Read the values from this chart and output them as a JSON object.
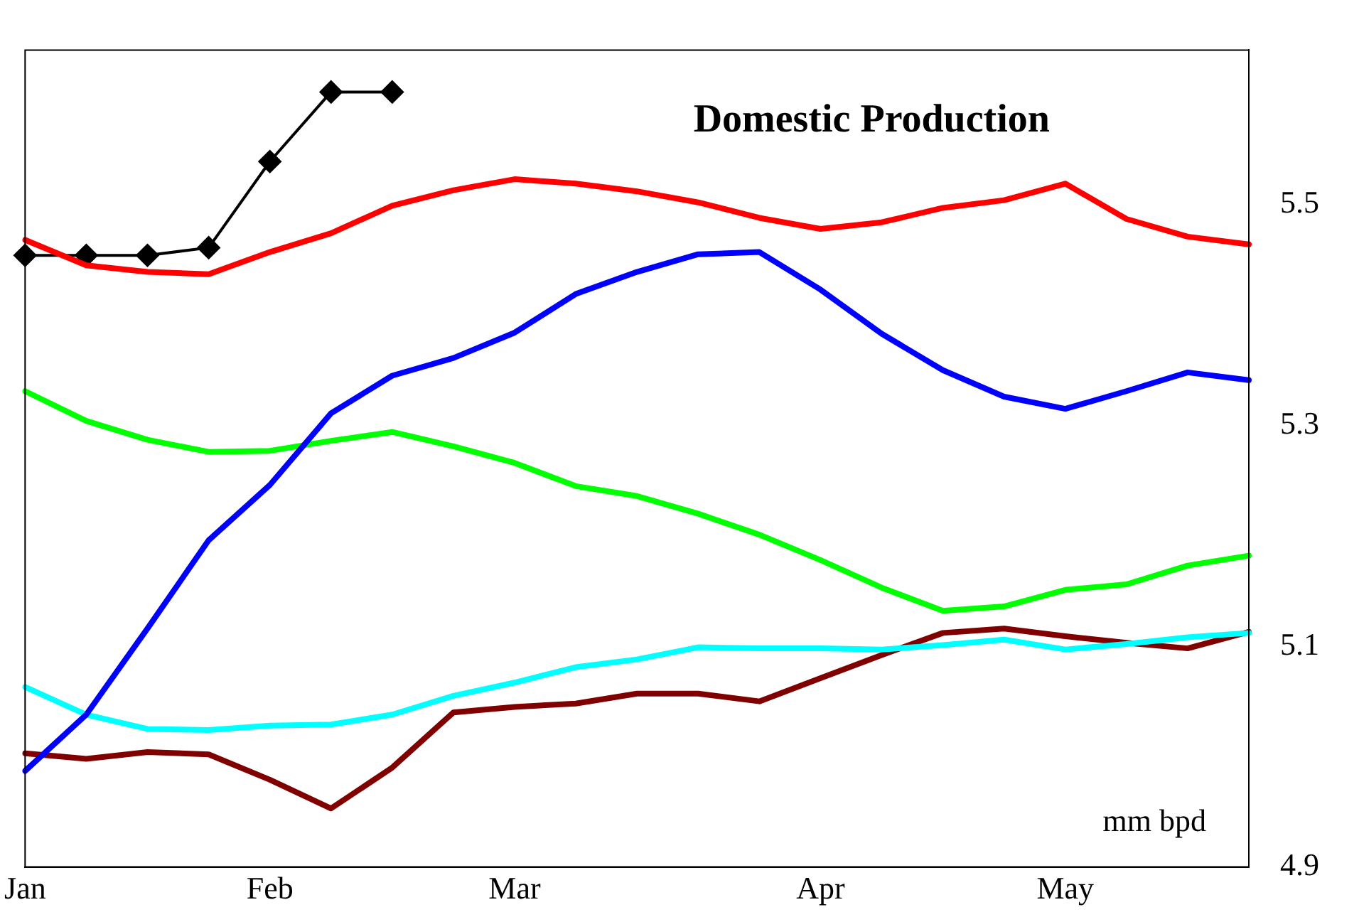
{
  "chart_data": {
    "type": "line",
    "title": "Domestic Production",
    "annotations": [
      "mm bpd"
    ],
    "categories": [
      "Jan",
      null,
      null,
      null,
      "Feb",
      null,
      null,
      null,
      "Mar",
      null,
      null,
      null,
      null,
      "Apr",
      null,
      null,
      null,
      "May",
      null,
      null,
      null
    ],
    "ylim": [
      4.9,
      5.64
    ],
    "yticks": [
      4.9,
      5.1,
      5.3,
      5.5
    ],
    "grid": false,
    "legend": false,
    "marker": "none",
    "line_style": "solid",
    "series": [
      {
        "color": "#ff0000",
        "values": [
          5.468,
          5.445,
          5.439,
          5.437,
          5.457,
          5.474,
          5.499,
          5.513,
          5.523,
          5.519,
          5.512,
          5.502,
          5.488,
          5.478,
          5.484,
          5.497,
          5.504,
          5.519,
          5.487,
          5.471,
          5.464
        ]
      },
      {
        "color": "#0000ff",
        "values": [
          4.987,
          5.038,
          5.116,
          5.196,
          5.246,
          5.311,
          5.345,
          5.361,
          5.384,
          5.419,
          5.439,
          5.455,
          5.457,
          5.423,
          5.383,
          5.35,
          5.326,
          5.315,
          5.331,
          5.348,
          5.341
        ]
      },
      {
        "color": "#00ff00",
        "values": [
          5.331,
          5.304,
          5.287,
          5.276,
          5.277,
          5.286,
          5.294,
          5.281,
          5.266,
          5.245,
          5.236,
          5.22,
          5.201,
          5.178,
          5.153,
          5.132,
          5.136,
          5.151,
          5.156,
          5.173,
          5.182
        ]
      },
      {
        "color": "#00ffff",
        "values": [
          5.063,
          5.038,
          5.025,
          5.024,
          5.028,
          5.029,
          5.038,
          5.055,
          5.067,
          5.081,
          5.088,
          5.099,
          5.098,
          5.098,
          5.097,
          5.101,
          5.106,
          5.097,
          5.102,
          5.108,
          5.112
        ]
      },
      {
        "color": "#800000",
        "values": [
          5.003,
          4.998,
          5.004,
          5.002,
          4.979,
          4.953,
          4.99,
          5.04,
          5.045,
          5.048,
          5.057,
          5.057,
          5.05,
          5.071,
          5.092,
          5.112,
          5.116,
          5.109,
          5.103,
          5.098,
          5.113
        ]
      },
      {
        "color": "#000000",
        "marker": "diamond",
        "values": [
          5.454,
          5.454,
          5.454,
          5.461,
          5.539,
          5.602,
          5.602,
          null,
          null,
          null,
          null,
          null,
          null,
          null,
          null,
          null,
          null,
          null,
          null,
          null,
          null
        ]
      }
    ]
  }
}
